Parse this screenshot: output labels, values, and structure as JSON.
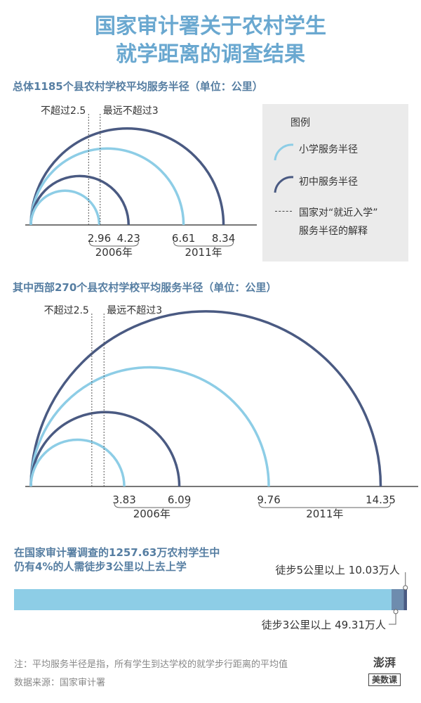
{
  "title": {
    "line1": "国家审计署关于农村学生",
    "line2": "就学距离的调查结果"
  },
  "chart_data": [
    {
      "type": "semicircle",
      "title": "总体1185个县农村学校平均服务半径（单位：公里）",
      "guides": [
        {
          "label": "不超过2.5",
          "value": 2.5
        },
        {
          "label": "最远不超过3",
          "value": 3
        }
      ],
      "series": [
        {
          "name": "小学服务半径",
          "values": [
            {
              "year": "2006年",
              "value": 2.96
            },
            {
              "year": "2011年",
              "value": 6.61
            }
          ]
        },
        {
          "name": "初中服务半径",
          "values": [
            {
              "year": "2006年",
              "value": 4.23
            },
            {
              "year": "2011年",
              "value": 8.34
            }
          ]
        }
      ],
      "tick_labels": [
        "2.96",
        "4.23",
        "6.61",
        "8.34"
      ],
      "year_labels": [
        "2006年",
        "2011年"
      ]
    },
    {
      "type": "semicircle",
      "title": "其中西部270个县农村学校平均服务半径（单位：公里）",
      "guides": [
        {
          "label": "不超过2.5",
          "value": 2.5
        },
        {
          "label": "最远不超过3",
          "value": 3
        }
      ],
      "series": [
        {
          "name": "小学服务半径",
          "values": [
            {
              "year": "2006年",
              "value": 3.83
            },
            {
              "year": "2011年",
              "value": 9.76
            }
          ]
        },
        {
          "name": "初中服务半径",
          "values": [
            {
              "year": "2006年",
              "value": 6.09
            },
            {
              "year": "2011年",
              "value": 14.35
            }
          ]
        }
      ],
      "tick_labels": [
        "3.83",
        "6.09",
        "9.76",
        "14.35"
      ],
      "year_labels": [
        "2006年",
        "2011年"
      ]
    },
    {
      "type": "bar",
      "title": "在国家审计署调查的1257.63万农村学生中仍有4%的人需徒步3公里以上去上学",
      "total": 1257.63,
      "segments": [
        {
          "label": "徒步3公里以上 49.31万人",
          "value": 49.31
        },
        {
          "label": "徒步5公里以上 10.03万人",
          "value": 10.03
        }
      ]
    }
  ],
  "legend": {
    "title": "图例",
    "items": [
      {
        "label": "小学服务半径",
        "type": "primary"
      },
      {
        "label": "初中服务半径",
        "type": "middle"
      }
    ],
    "guide_line1": "国家对“就近入学”",
    "guide_line2": "服务半径的解释"
  },
  "bar": {
    "title_line1": "在国家审计署调查的1257.63万农村学生中",
    "title_line2": "仍有4%的人需徒步3公里以上去上学"
  },
  "footer": {
    "note": "注：平均服务半径是指，所有学生到达学校的就学步行距离的平均值",
    "source": "数据来源：国家审计署"
  },
  "logo": {
    "top": "澎湃",
    "bottom": "美数课"
  },
  "colors": {
    "primary": "#8dcde6",
    "middle": "#4a5a82",
    "bar_dark": "#6e8cae",
    "title": "#6aa8d0",
    "section": "#567ea2"
  }
}
